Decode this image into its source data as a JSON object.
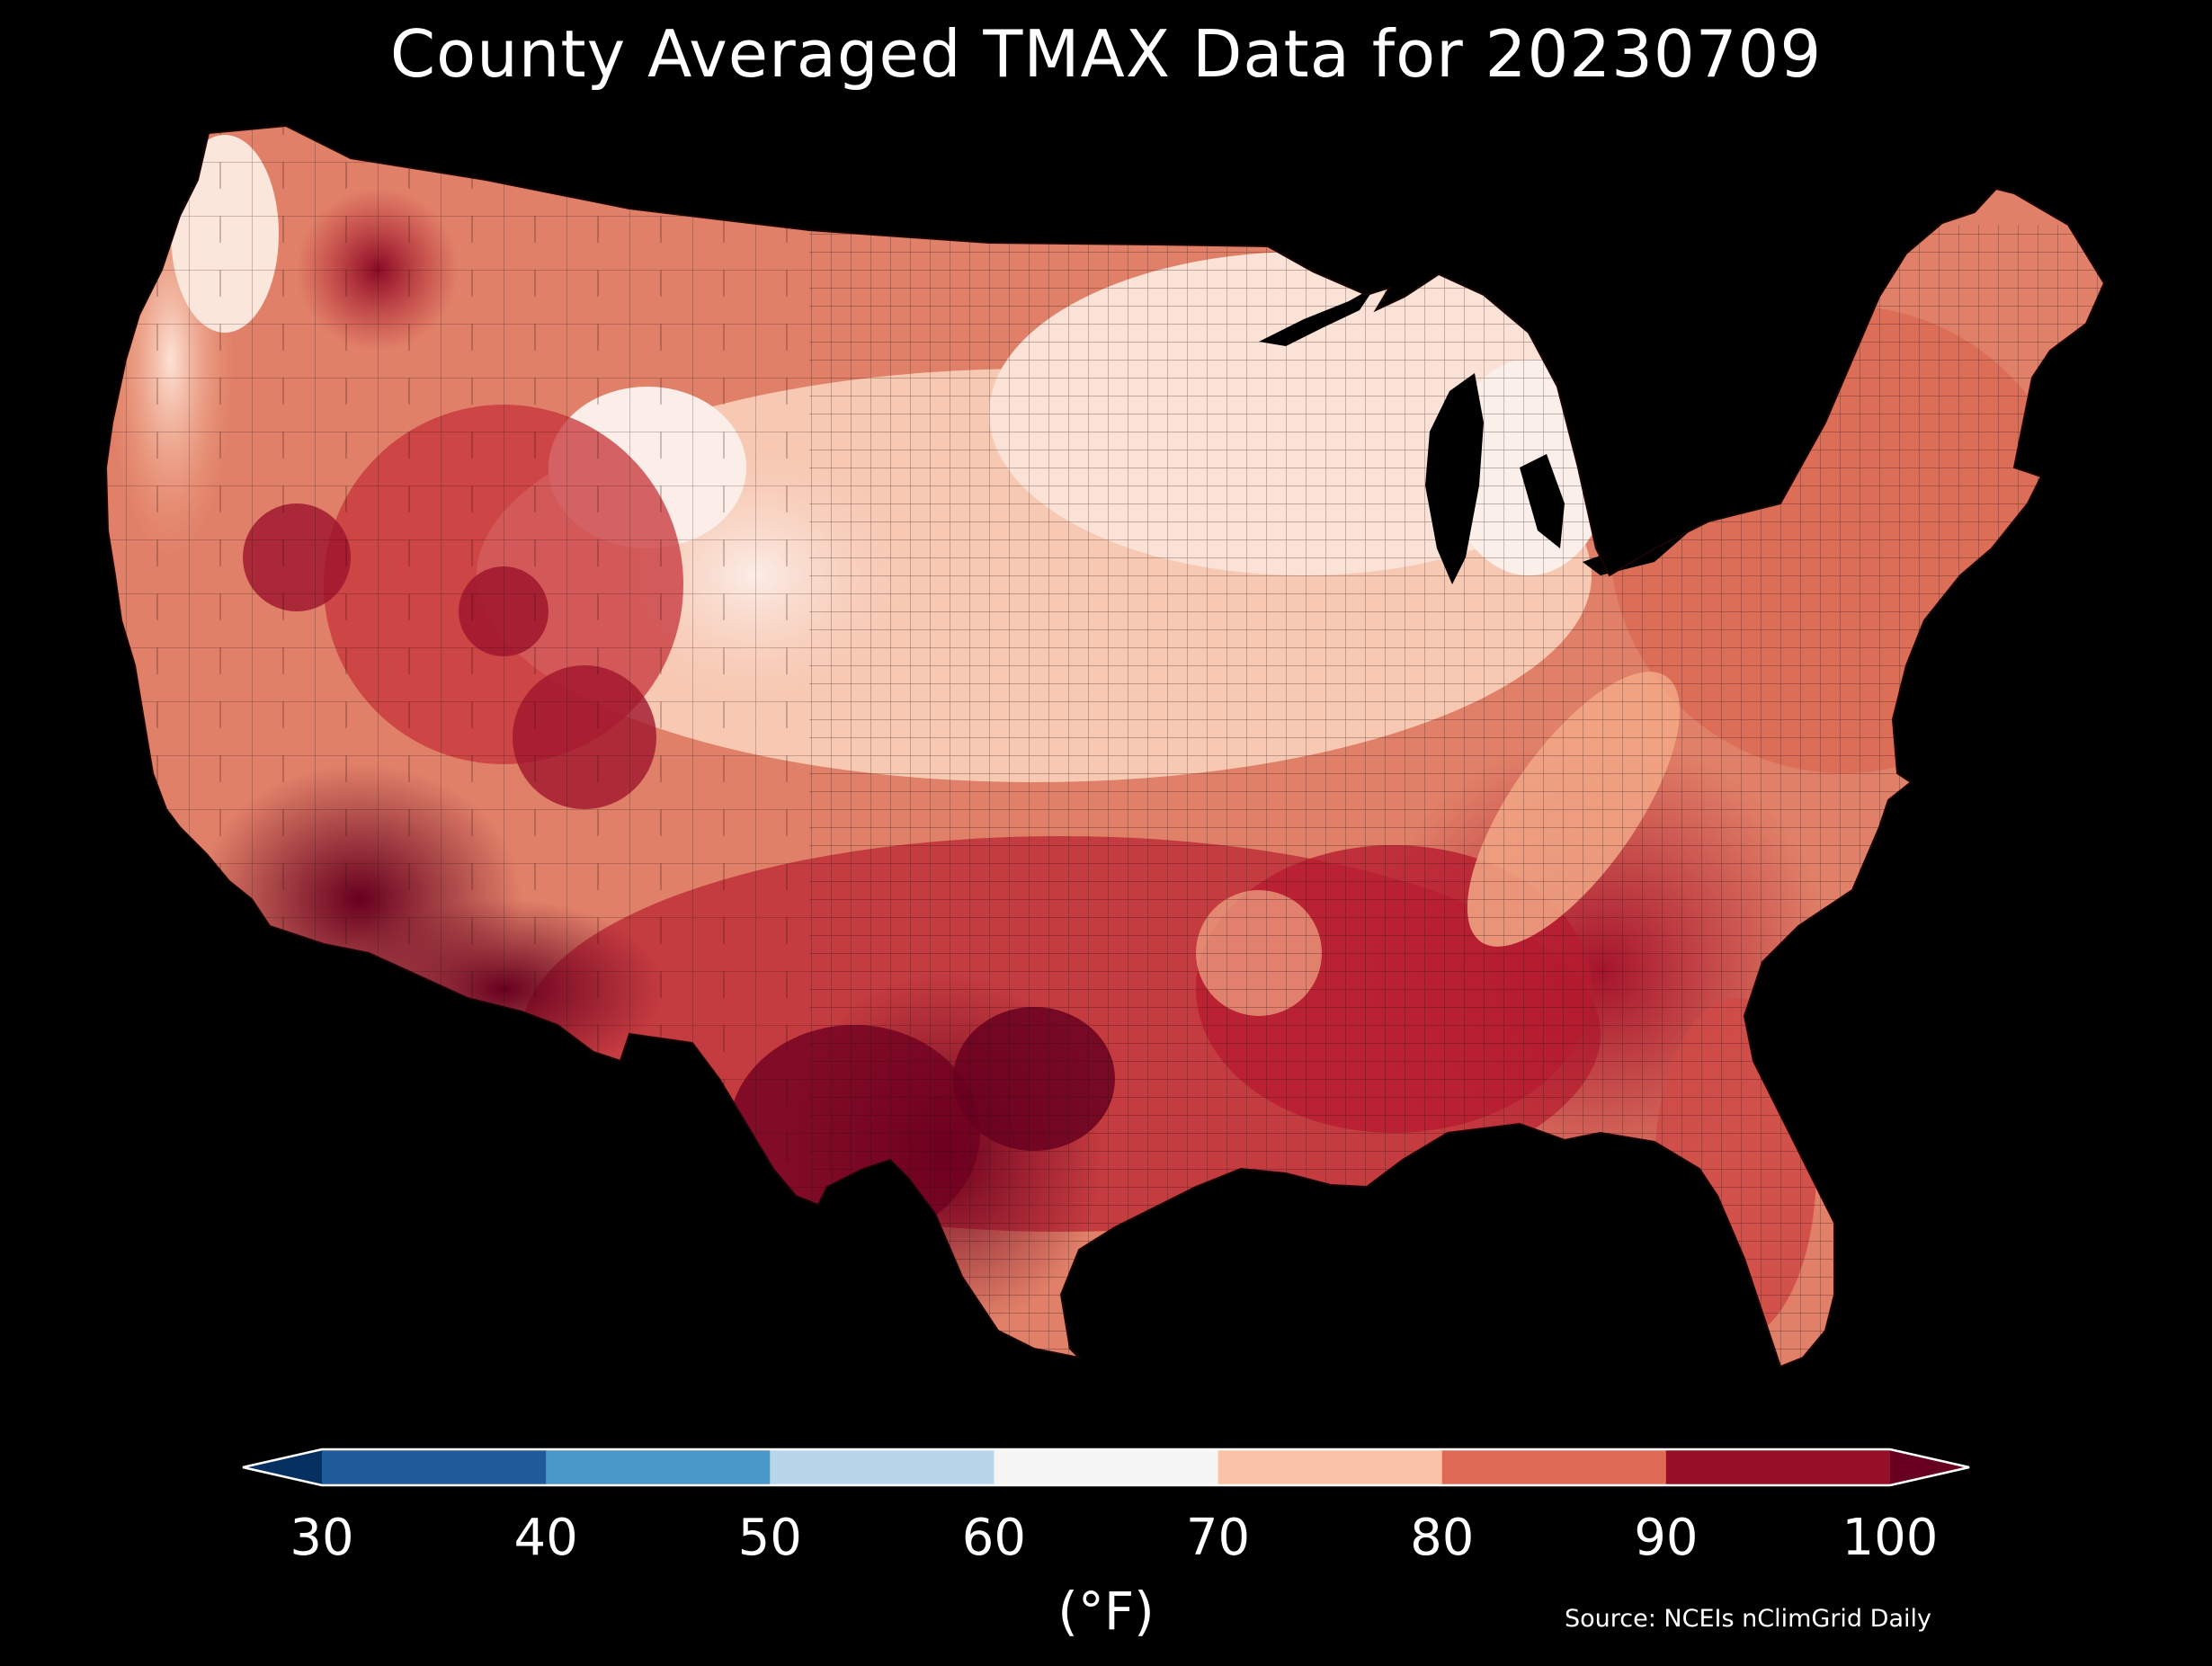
{
  "title": "County Averaged TMAX Data for 20230709",
  "colorbar": {
    "units": "(°F)",
    "ticks": [
      "30",
      "40",
      "50",
      "60",
      "70",
      "80",
      "90",
      "100"
    ],
    "bins": [
      {
        "range": "<30",
        "color": "#053061"
      },
      {
        "range": "30-40",
        "color": "#1f5a9b"
      },
      {
        "range": "40-50",
        "color": "#4a98c8"
      },
      {
        "range": "50-60",
        "color": "#b7d6ea"
      },
      {
        "range": "60-70",
        "color": "#f5f5f5"
      },
      {
        "range": "70-80",
        "color": "#fac3a8"
      },
      {
        "range": "80-90",
        "color": "#df6a55"
      },
      {
        "range": "90-100",
        "color": "#970f27"
      },
      {
        "range": ">100",
        "color": "#67001f"
      }
    ]
  },
  "source": "Source: NCEIs nClimGrid Daily",
  "colors": {
    "background": "#000000",
    "border": "#ffffff"
  }
}
